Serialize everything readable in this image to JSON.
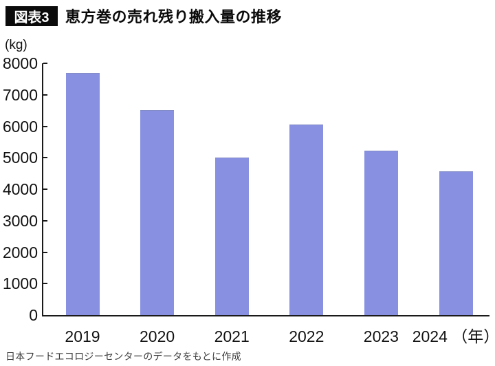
{
  "figure": {
    "badge": "図表3",
    "title": "恵方巻の売れ残り搬入量の推移",
    "source": "日本フードエコロジーセンターのデータをもとに作成"
  },
  "chart_data": {
    "type": "bar",
    "title": "恵方巻の売れ残り搬入量の推移",
    "unit_label": "(kg)",
    "year_suffix": "（年）",
    "categories": [
      "2019",
      "2020",
      "2021",
      "2022",
      "2023",
      "2024"
    ],
    "values": [
      7700,
      6520,
      5000,
      6050,
      5220,
      4570
    ],
    "ylim": [
      0,
      8000
    ],
    "yticks": [
      0,
      1000,
      2000,
      3000,
      4000,
      5000,
      6000,
      7000,
      8000
    ],
    "grid": false,
    "legend": false,
    "bar_color": "#8790e1",
    "axis_color": "#1a1a1a"
  }
}
